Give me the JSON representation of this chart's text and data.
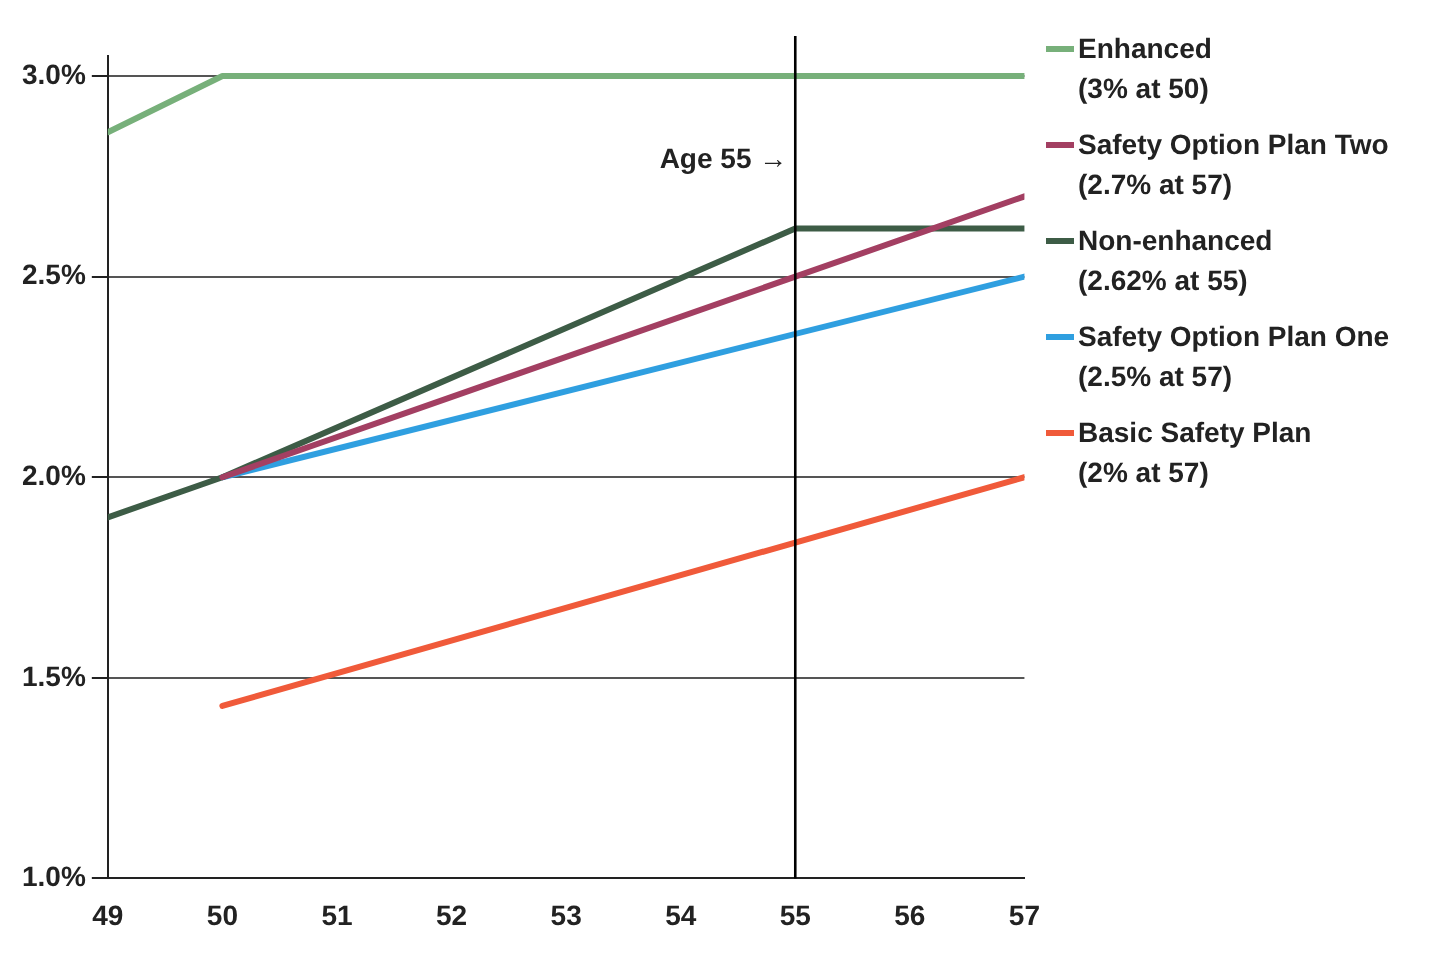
{
  "chart_data": {
    "type": "line",
    "xlim": [
      49,
      57
    ],
    "xticks": [
      49,
      50,
      51,
      52,
      53,
      54,
      55,
      56,
      57
    ],
    "ylim": [
      1,
      3.05
    ],
    "yticks": [
      {
        "value": 1,
        "label": "1.0%"
      },
      {
        "value": 1.5,
        "label": "1.5%"
      },
      {
        "value": 2,
        "label": "2.0%"
      },
      {
        "value": 2.5,
        "label": "2.5%"
      },
      {
        "value": 3,
        "label": "3.0%"
      }
    ],
    "grid": "y",
    "legend": "right",
    "marker": "none",
    "line_style": "solid",
    "ref_lines": [
      {
        "axis": "x",
        "value": 55,
        "label": "Age 55 →",
        "color": "#000000"
      }
    ],
    "series": [
      {
        "name": "Enhanced\n(3% at 50)",
        "color": "#77b07a",
        "x": [
          49,
          50,
          57
        ],
        "values": [
          2.86,
          3,
          3
        ]
      },
      {
        "name": "Safety Option Plan Two\n(2.7% at 57)",
        "color": "#a33f62",
        "x": [
          50,
          57
        ],
        "values": [
          2,
          2.7
        ]
      },
      {
        "name": "Non-enhanced\n(2.62% at 55)",
        "color": "#3d5c46",
        "x": [
          49,
          50,
          55,
          57
        ],
        "values": [
          1.9,
          2,
          2.62,
          2.62
        ]
      },
      {
        "name": "Safety Option Plan One\n(2.5% at 57)",
        "color": "#2f9fe0",
        "x": [
          50,
          57
        ],
        "values": [
          2,
          2.5
        ]
      },
      {
        "name": "Basic Safety Plan\n(2% at 57)",
        "color": "#f05a3a",
        "x": [
          50,
          57
        ],
        "values": [
          1.43,
          2
        ]
      }
    ]
  }
}
